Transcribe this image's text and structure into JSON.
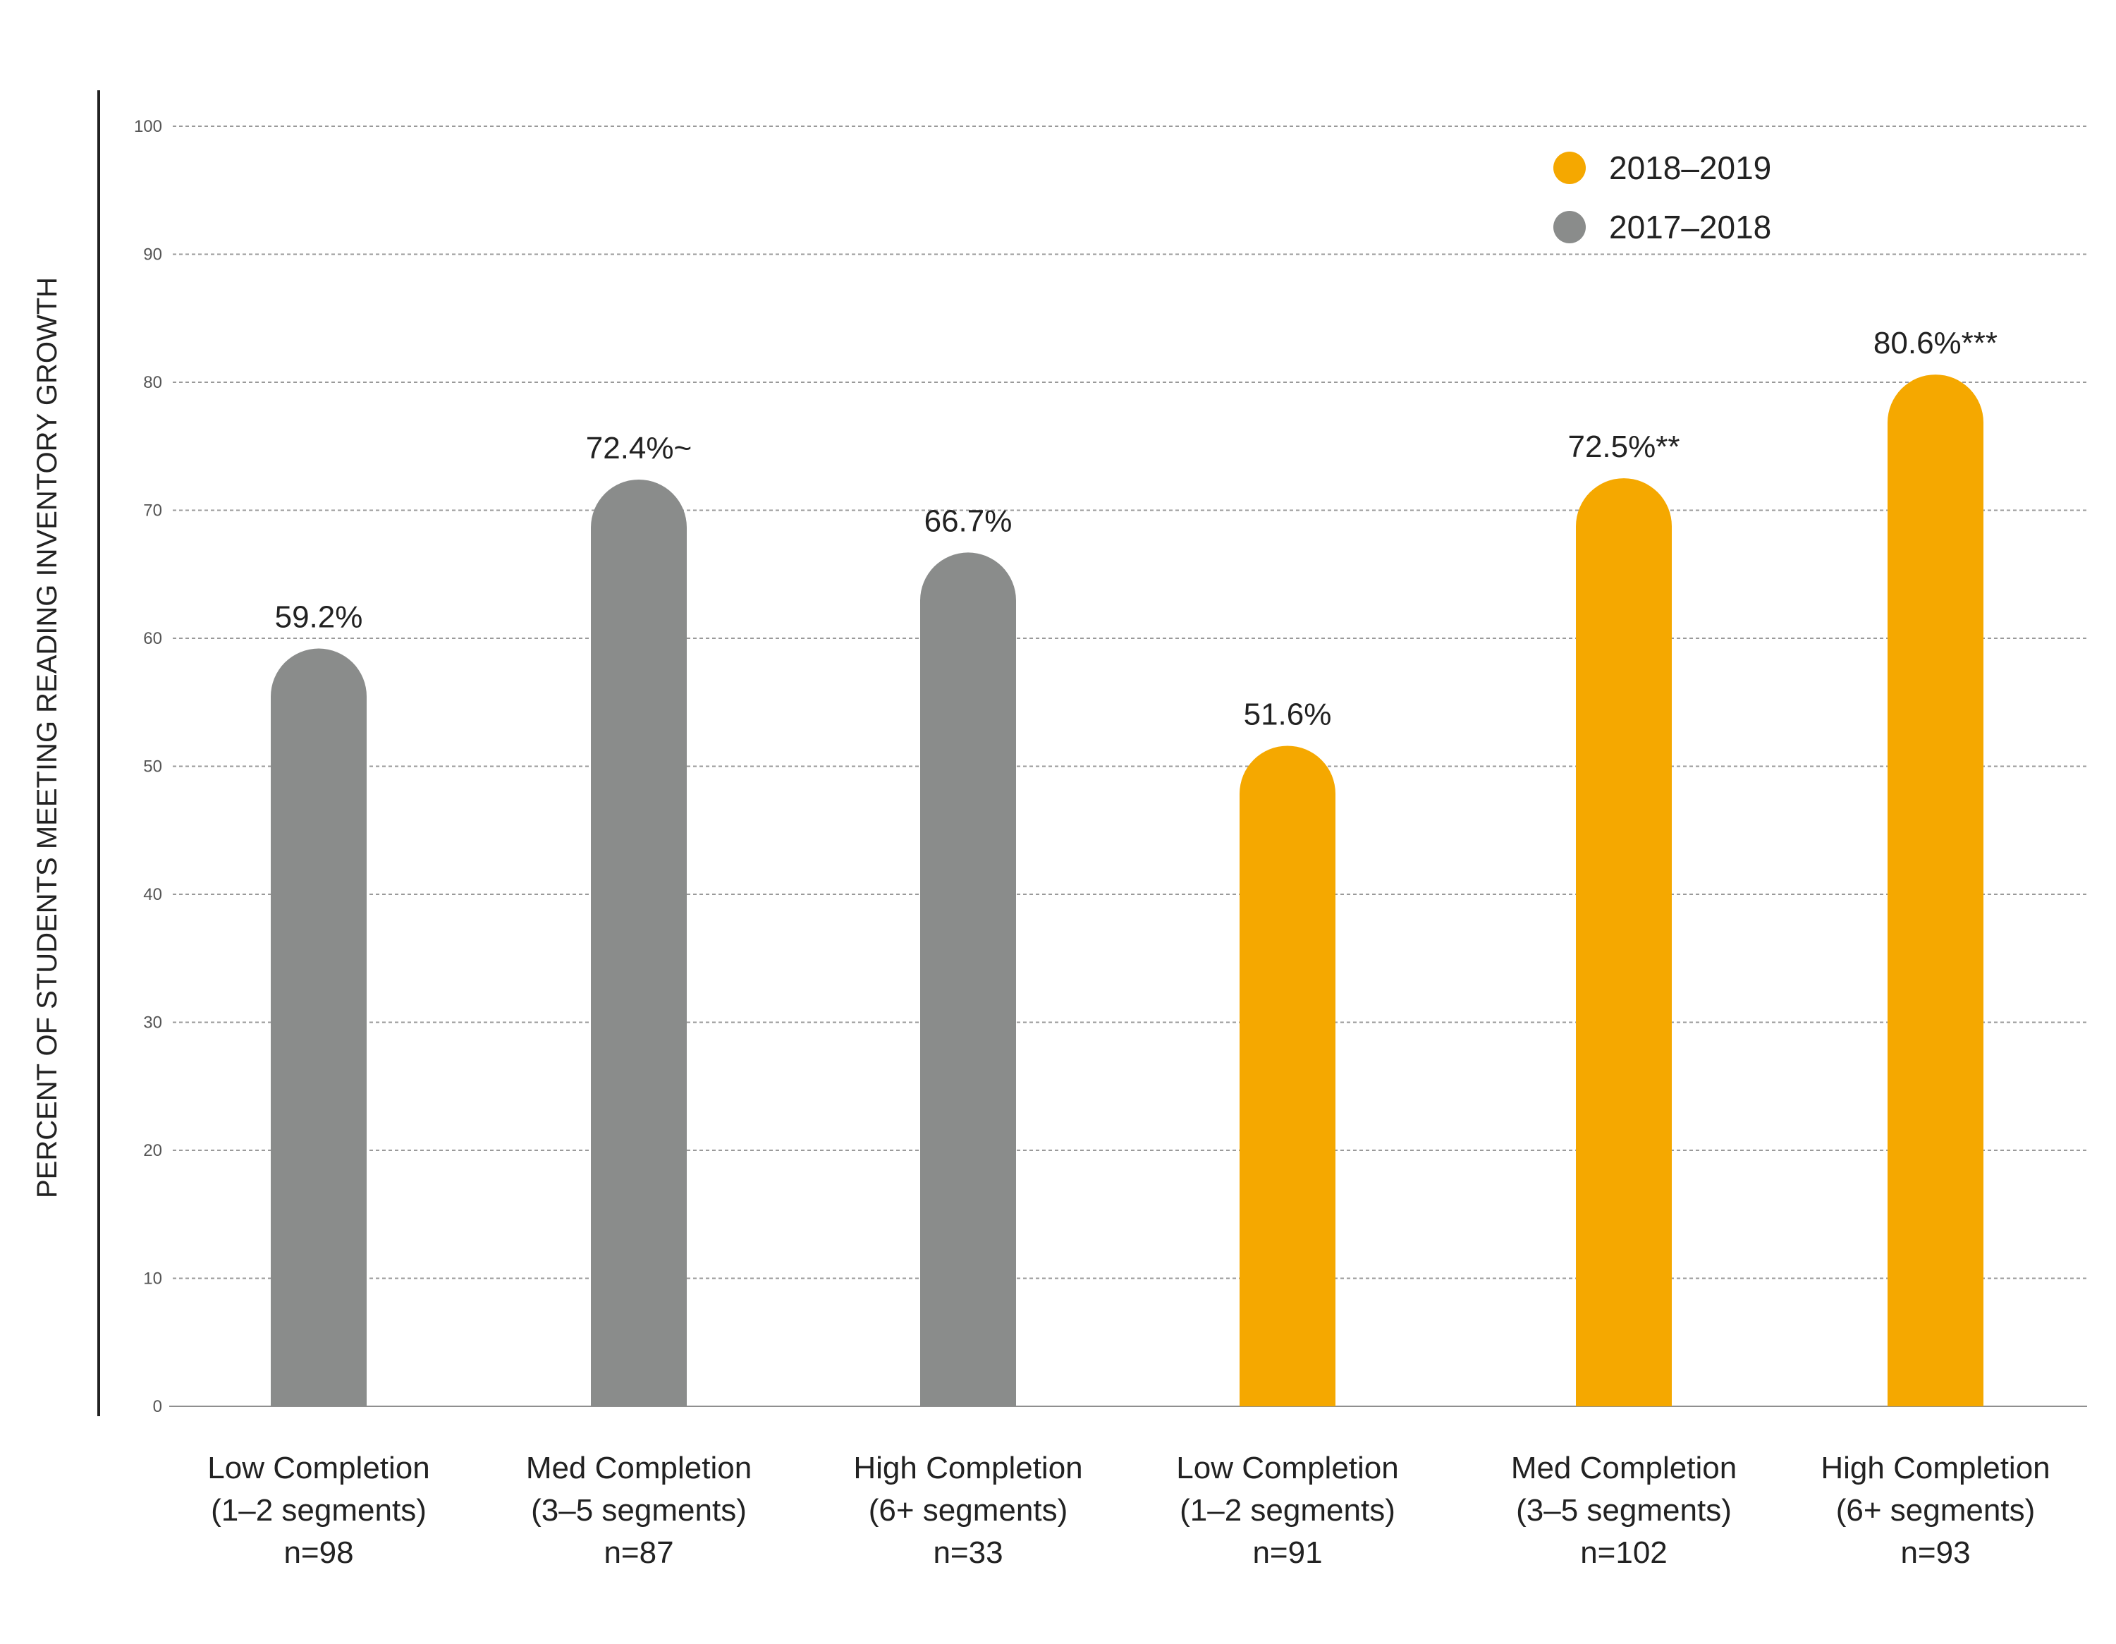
{
  "chart_data": {
    "type": "bar",
    "ylabel": "PERCENT OF STUDENTS MEETING READING INVENTORY GROWTH",
    "ylim": [
      0,
      100
    ],
    "yticks": [
      0,
      10,
      20,
      30,
      40,
      50,
      60,
      70,
      80,
      90,
      100
    ],
    "grid": true,
    "legend_position": "top-right",
    "series": [
      {
        "name": "2017–2018",
        "color": "#8a8c8b"
      },
      {
        "name": "2018–2019",
        "color": "#f5a800"
      }
    ],
    "legend_order": [
      "2018–2019",
      "2017–2018"
    ],
    "bars": [
      {
        "series": "2017–2018",
        "lines": [
          "Low Completion",
          "(1–2 segments)",
          "n=98"
        ],
        "value": 59.2,
        "label": "59.2%"
      },
      {
        "series": "2017–2018",
        "lines": [
          "Med Completion",
          "(3–5 segments)",
          "n=87"
        ],
        "value": 72.4,
        "label": "72.4%~"
      },
      {
        "series": "2017–2018",
        "lines": [
          "High Completion",
          "(6+ segments)",
          "n=33"
        ],
        "value": 66.7,
        "label": "66.7%"
      },
      {
        "series": "2018–2019",
        "lines": [
          "Low Completion",
          "(1–2 segments)",
          "n=91"
        ],
        "value": 51.6,
        "label": "51.6%"
      },
      {
        "series": "2018–2019",
        "lines": [
          "Med Completion",
          "(3–5 segments)",
          "n=102"
        ],
        "value": 72.5,
        "label": "72.5%**"
      },
      {
        "series": "2018–2019",
        "lines": [
          "High Completion",
          "(6+ segments)",
          "n=93"
        ],
        "value": 80.6,
        "label": "80.6%***"
      }
    ]
  }
}
